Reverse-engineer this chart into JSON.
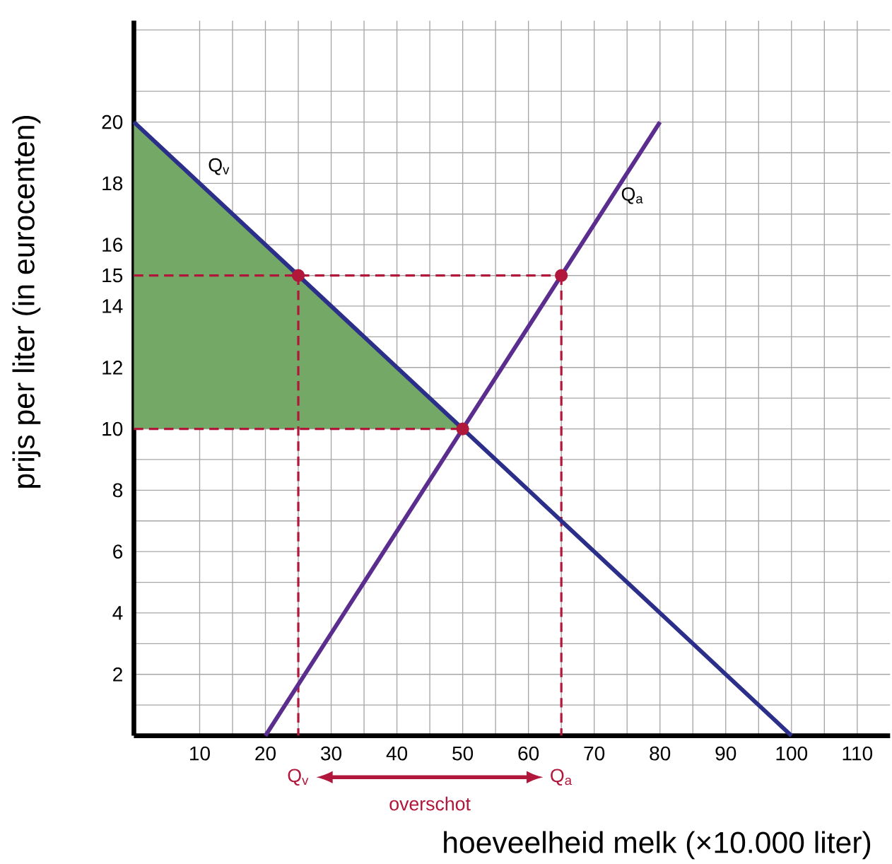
{
  "chart_data": {
    "type": "line",
    "xlabel": "hoeveelheid melk (×10.000 liter)",
    "ylabel": "prijs per liter (in eurocenten)",
    "xlim": [
      0,
      115
    ],
    "ylim": [
      0,
      23.3
    ],
    "xticks": [
      10,
      20,
      30,
      40,
      50,
      60,
      70,
      80,
      90,
      100,
      110
    ],
    "yticks": [
      2,
      4,
      6,
      8,
      10,
      12,
      14,
      15,
      16,
      18,
      20
    ],
    "grid": true,
    "series": [
      {
        "type": "area",
        "color": "#74a866",
        "x": [
          0,
          50,
          0
        ],
        "values": [
          20,
          10,
          10
        ]
      },
      {
        "color": "#b0173a",
        "line_style": "dashed",
        "x": [
          0,
          65
        ],
        "values": [
          15,
          15
        ]
      },
      {
        "color": "#b0173a",
        "line_style": "dashed",
        "x": [
          0,
          50
        ],
        "values": [
          10,
          10
        ]
      },
      {
        "color": "#b0173a",
        "line_style": "dashed",
        "x": [
          25,
          25
        ],
        "values": [
          15,
          0
        ]
      },
      {
        "color": "#b0173a",
        "line_style": "dashed",
        "x": [
          65,
          65
        ],
        "values": [
          15,
          0
        ]
      },
      {
        "name": "Q$_{v}$",
        "color": "#2b2f8a",
        "x": [
          0,
          50,
          100
        ],
        "values": [
          20,
          10,
          0
        ]
      },
      {
        "name": "Q$_{a}$",
        "color": "#5b2d8e",
        "x": [
          20,
          80
        ],
        "values": [
          0,
          20
        ]
      },
      {
        "type": "scatter",
        "color": "#b0173a",
        "marker": "circle",
        "x": [
          25,
          65,
          50
        ],
        "values": [
          15,
          15,
          10
        ]
      }
    ],
    "annotations": [
      "Q$_{v}$",
      "Q$_{a}$",
      "overschot"
    ]
  }
}
